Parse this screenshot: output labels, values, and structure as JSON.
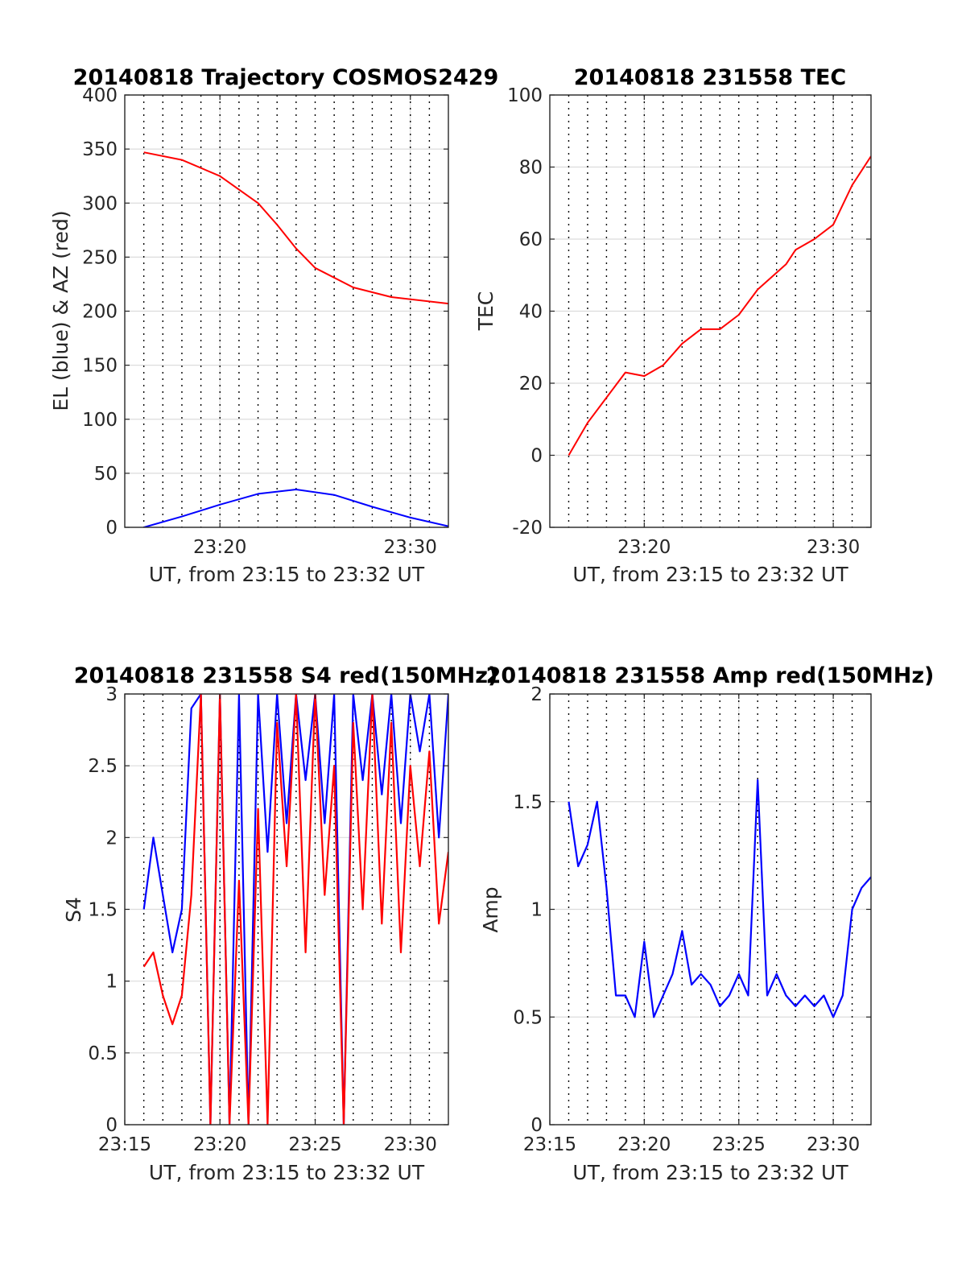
{
  "chart_data": [
    {
      "id": "traj",
      "type": "line",
      "title": "20140818 Trajectory COSMOS2429",
      "xlabel": "UT, from 23:15 to 23:32 UT",
      "ylabel": "EL (blue) & AZ (red)",
      "xlim": [
        23.25,
        23.5333
      ],
      "ylim": [
        0,
        400
      ],
      "xticks": [
        {
          "v": 23.3333,
          "label": "23:20"
        },
        {
          "v": 23.5,
          "label": "23:30"
        }
      ],
      "yticks": [
        0,
        50,
        100,
        150,
        200,
        250,
        300,
        350,
        400
      ],
      "grid": true,
      "series": [
        {
          "color": "#ff0000",
          "x": [
            23.2667,
            23.3,
            23.3333,
            23.3667,
            23.3833,
            23.4,
            23.4167,
            23.45,
            23.4833,
            23.5333
          ],
          "values": [
            347,
            340,
            325,
            300,
            280,
            258,
            240,
            222,
            213,
            207
          ]
        },
        {
          "color": "#0000ff",
          "x": [
            23.2667,
            23.3,
            23.3333,
            23.3667,
            23.4,
            23.4333,
            23.4667,
            23.5,
            23.5333
          ],
          "values": [
            0,
            10,
            21,
            31,
            35,
            30,
            19,
            9,
            1
          ]
        }
      ]
    },
    {
      "id": "tec",
      "type": "line",
      "title": "20140818 231558 TEC",
      "xlabel": "UT, from 23:15 to 23:32 UT",
      "ylabel": "TEC",
      "xlim": [
        23.25,
        23.5333
      ],
      "ylim": [
        -20,
        100
      ],
      "xticks": [
        {
          "v": 23.3333,
          "label": "23:20"
        },
        {
          "v": 23.5,
          "label": "23:30"
        }
      ],
      "yticks": [
        -20,
        0,
        20,
        40,
        60,
        80,
        100
      ],
      "grid": true,
      "series": [
        {
          "color": "#ff0000",
          "x": [
            23.2667,
            23.2833,
            23.3,
            23.3167,
            23.3333,
            23.35,
            23.3667,
            23.3833,
            23.4,
            23.4167,
            23.4333,
            23.4583,
            23.4667,
            23.4833,
            23.5,
            23.5167,
            23.5333
          ],
          "values": [
            0,
            9,
            16,
            23,
            22,
            25,
            31,
            35,
            35,
            39,
            46,
            53,
            57,
            60,
            64,
            75,
            83
          ]
        }
      ]
    },
    {
      "id": "s4",
      "type": "line",
      "title": "20140818 231558 S4 red(150MHz)",
      "xlabel": "UT, from 23:15 to 23:32 UT",
      "ylabel": "S4",
      "xlim": [
        23.25,
        23.5333
      ],
      "ylim": [
        0,
        3
      ],
      "xticks": [
        {
          "v": 23.25,
          "label": "23:15"
        },
        {
          "v": 23.3333,
          "label": "23:20"
        },
        {
          "v": 23.4167,
          "label": "23:25"
        },
        {
          "v": 23.5,
          "label": "23:30"
        }
      ],
      "yticks": [
        0,
        0.5,
        1,
        1.5,
        2,
        2.5,
        3
      ],
      "grid": true,
      "series": [
        {
          "color": "#0000ff",
          "x": [
            23.2667,
            23.275,
            23.2833,
            23.2917,
            23.3,
            23.3083,
            23.3167,
            23.325,
            23.3333,
            23.3417,
            23.35,
            23.3583,
            23.3667,
            23.375,
            23.3833,
            23.3917,
            23.4,
            23.4083,
            23.4167,
            23.425,
            23.4333,
            23.4417,
            23.45,
            23.4583,
            23.4667,
            23.475,
            23.4833,
            23.4917,
            23.5,
            23.5083,
            23.5167,
            23.525,
            23.5333
          ],
          "values": [
            1.5,
            2.0,
            1.6,
            1.2,
            1.5,
            2.9,
            3.0,
            0.0,
            3.0,
            0.0,
            3.0,
            0.0,
            3.0,
            1.9,
            3.0,
            2.1,
            3.0,
            2.4,
            3.0,
            2.1,
            3.0,
            0.0,
            3.0,
            2.4,
            3.0,
            2.3,
            3.0,
            2.1,
            3.0,
            2.6,
            3.0,
            2.0,
            3.0
          ]
        },
        {
          "color": "#ff0000",
          "x": [
            23.2667,
            23.275,
            23.2833,
            23.2917,
            23.3,
            23.3083,
            23.3167,
            23.325,
            23.3333,
            23.3417,
            23.35,
            23.3583,
            23.3667,
            23.375,
            23.3833,
            23.3917,
            23.4,
            23.4083,
            23.4167,
            23.425,
            23.4333,
            23.4417,
            23.45,
            23.4583,
            23.4667,
            23.475,
            23.4833,
            23.4917,
            23.5,
            23.5083,
            23.5167,
            23.525,
            23.5333
          ],
          "values": [
            1.1,
            1.2,
            0.9,
            0.7,
            0.9,
            1.6,
            3.0,
            0.0,
            3.0,
            0.0,
            1.7,
            0.0,
            2.2,
            0.0,
            2.8,
            1.8,
            3.0,
            1.2,
            3.0,
            1.6,
            2.5,
            0.0,
            2.8,
            1.5,
            3.0,
            1.4,
            2.8,
            1.2,
            2.5,
            1.8,
            2.6,
            1.4,
            1.9
          ]
        }
      ]
    },
    {
      "id": "amp",
      "type": "line",
      "title": "20140818 231558 Amp red(150MHz)",
      "xlabel": "UT, from 23:15 to 23:32 UT",
      "ylabel": "Amp",
      "xlim": [
        23.25,
        23.5333
      ],
      "ylim": [
        0,
        2
      ],
      "xticks": [
        {
          "v": 23.25,
          "label": "23:15"
        },
        {
          "v": 23.3333,
          "label": "23:20"
        },
        {
          "v": 23.4167,
          "label": "23:25"
        },
        {
          "v": 23.5,
          "label": "23:30"
        }
      ],
      "yticks": [
        0,
        0.5,
        1,
        1.5,
        2
      ],
      "grid": true,
      "series": [
        {
          "color": "#0000ff",
          "x": [
            23.2667,
            23.275,
            23.2833,
            23.2917,
            23.3,
            23.3083,
            23.3167,
            23.325,
            23.3333,
            23.3417,
            23.35,
            23.3583,
            23.3667,
            23.375,
            23.3833,
            23.3917,
            23.4,
            23.4083,
            23.4167,
            23.425,
            23.4333,
            23.4417,
            23.45,
            23.4583,
            23.4667,
            23.475,
            23.4833,
            23.4917,
            23.5,
            23.5083,
            23.5167,
            23.525,
            23.5333
          ],
          "values": [
            1.5,
            1.2,
            1.3,
            1.5,
            1.1,
            0.6,
            0.6,
            0.5,
            0.85,
            0.5,
            0.6,
            0.7,
            0.9,
            0.65,
            0.7,
            0.65,
            0.55,
            0.6,
            0.7,
            0.6,
            1.6,
            0.6,
            0.7,
            0.6,
            0.55,
            0.6,
            0.55,
            0.6,
            0.5,
            0.6,
            1.0,
            1.1,
            1.15
          ]
        }
      ]
    }
  ]
}
